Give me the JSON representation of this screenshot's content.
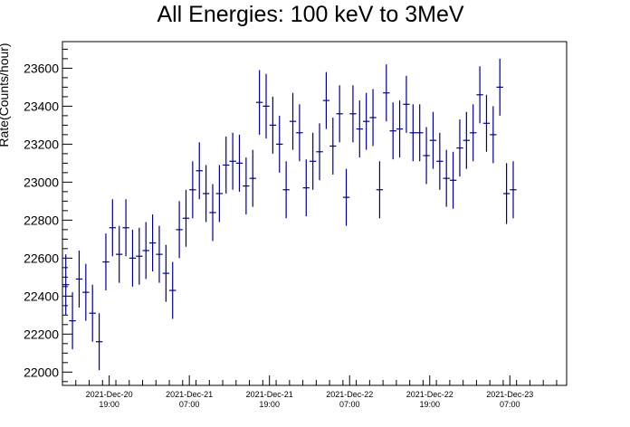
{
  "chart_data": {
    "type": "scatter",
    "title": "All Energies:  100 keV to 3MeV",
    "ylabel": "Rate(Counts/hour)",
    "xlabel": "",
    "xlim": [
      0,
      75.5
    ],
    "ylim": [
      21930,
      23740
    ],
    "grid": false,
    "y_ticks": [
      {
        "value": 22000,
        "label": "22000"
      },
      {
        "value": 22200,
        "label": "22200"
      },
      {
        "value": 22400,
        "label": "22400"
      },
      {
        "value": 22600,
        "label": "22600"
      },
      {
        "value": 22800,
        "label": "22800"
      },
      {
        "value": 23000,
        "label": "23000"
      },
      {
        "value": 23200,
        "label": "23200"
      },
      {
        "value": 23400,
        "label": "23400"
      },
      {
        "value": 23600,
        "label": "23600"
      }
    ],
    "x_ticks": [
      {
        "value": 7,
        "date": "2021-Dec-20",
        "time": "19:00"
      },
      {
        "value": 19,
        "date": "2021-Dec-21",
        "time": "07:00"
      },
      {
        "value": 31,
        "date": "2021-Dec-21",
        "time": "19:00"
      },
      {
        "value": 43,
        "date": "2021-Dec-22",
        "time": "07:00"
      },
      {
        "value": 55,
        "date": "2021-Dec-22",
        "time": "19:00"
      },
      {
        "value": 67,
        "date": "2021-Dec-23",
        "time": "07:00"
      }
    ],
    "series": [
      {
        "color": "#000080",
        "x": [
          0.5,
          1.5,
          2.5,
          3.5,
          4.5,
          5.5,
          6.5,
          7.5,
          8.5,
          9.5,
          10.5,
          11.5,
          12.5,
          13.5,
          14.5,
          15.5,
          16.5,
          17.5,
          18.5,
          19.5,
          20.5,
          21.5,
          22.5,
          23.5,
          24.5,
          25.5,
          26.5,
          27.5,
          28.5,
          29.5,
          30.5,
          31.5,
          32.5,
          33.5,
          34.5,
          35.5,
          36.5,
          37.5,
          38.5,
          39.5,
          40.5,
          41.5,
          42.5,
          43.5,
          44.5,
          45.5,
          46.5,
          47.5,
          48.5,
          49.5,
          50.5,
          51.5,
          52.5,
          53.5,
          54.5,
          55.5,
          56.5,
          57.5,
          58.5,
          59.5,
          60.5,
          61.5,
          62.5,
          63.5,
          64.5,
          65.5,
          66.5,
          67.5
        ],
        "y": [
          22460,
          22270,
          22490,
          22420,
          22310,
          22160,
          22580,
          22760,
          22620,
          22760,
          22600,
          22610,
          22640,
          22680,
          22620,
          22520,
          22430,
          22750,
          22810,
          22960,
          23060,
          22940,
          22840,
          22940,
          23090,
          23110,
          23100,
          22980,
          23020,
          23420,
          23400,
          23300,
          23200,
          22960,
          23320,
          23260,
          22970,
          23110,
          23160,
          23430,
          23190,
          23360,
          22920,
          23360,
          23280,
          23320,
          23340,
          22960,
          23470,
          23270,
          23280,
          23410,
          23260,
          23260,
          23140,
          23220,
          23110,
          23020,
          23010,
          23180,
          23220,
          23260,
          23460,
          23310,
          23250,
          23500,
          22940,
          22960
        ],
        "err": [
          160,
          150,
          150,
          150,
          150,
          150,
          150,
          150,
          150,
          150,
          150,
          150,
          150,
          150,
          150,
          150,
          150,
          150,
          150,
          150,
          150,
          150,
          150,
          150,
          150,
          150,
          150,
          150,
          150,
          170,
          170,
          150,
          150,
          150,
          150,
          150,
          150,
          150,
          150,
          150,
          150,
          150,
          150,
          150,
          150,
          150,
          150,
          150,
          150,
          150,
          150,
          150,
          150,
          150,
          150,
          150,
          150,
          150,
          150,
          150,
          150,
          150,
          150,
          150,
          150,
          150,
          160,
          150
        ]
      }
    ]
  }
}
